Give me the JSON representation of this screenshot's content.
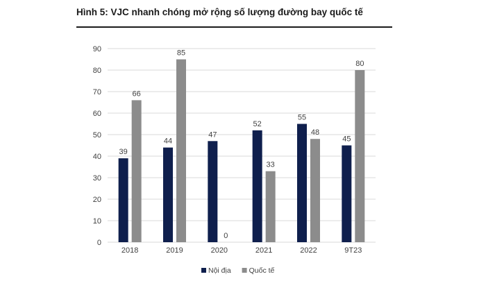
{
  "figure": {
    "title": "Hình 5: VJC nhanh chóng mở rộng số lượng đường bay quốc tế"
  },
  "colors": {
    "domestic": "#0f1f4d",
    "international": "#8c8c8c",
    "grid": "#d9d9d9",
    "axis_text": "#404040"
  },
  "chart_data": {
    "type": "bar",
    "categories": [
      "2018",
      "2019",
      "2020",
      "2021",
      "2022",
      "9T23"
    ],
    "series": [
      {
        "name": "Nội địa",
        "values": [
          39,
          44,
          47,
          52,
          55,
          45
        ]
      },
      {
        "name": "Quốc tế",
        "values": [
          66,
          85,
          0,
          33,
          48,
          80
        ]
      }
    ],
    "ylim": [
      0,
      90
    ],
    "yticks": [
      0,
      10,
      20,
      30,
      40,
      50,
      60,
      70,
      80,
      90
    ],
    "xlabel": "",
    "ylabel": "",
    "grid": true,
    "legend": "bottom-center",
    "data_labels": true
  }
}
